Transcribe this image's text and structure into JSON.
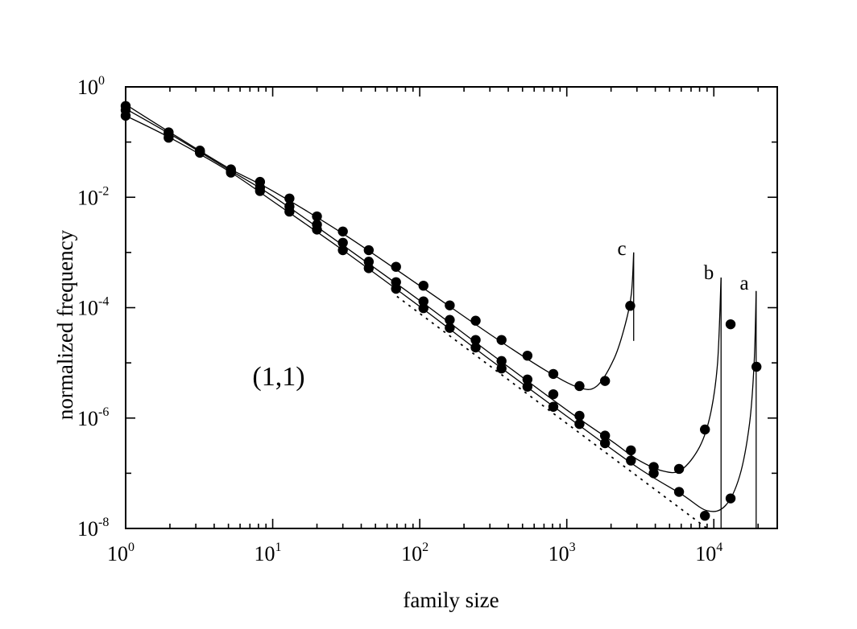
{
  "chart_data": {
    "type": "scatter",
    "xlabel": "family size",
    "ylabel": "normalized frequency",
    "xscale": "log",
    "yscale": "log",
    "xlim": [
      1,
      27000
    ],
    "ylim": [
      1e-08,
      1
    ],
    "x_ticks": [
      {
        "base": "10",
        "exp": "0"
      },
      {
        "base": "10",
        "exp": "1"
      },
      {
        "base": "10",
        "exp": "2"
      },
      {
        "base": "10",
        "exp": "3"
      },
      {
        "base": "10",
        "exp": "4"
      }
    ],
    "y_ticks": [
      {
        "base": "10",
        "exp": "-8"
      },
      {
        "base": "10",
        "exp": "-6"
      },
      {
        "base": "10",
        "exp": "-4"
      },
      {
        "base": "10",
        "exp": "-2"
      },
      {
        "base": "10",
        "exp": "0"
      }
    ],
    "annotation": "(1,1)",
    "series": [
      {
        "name": "a",
        "points": [
          [
            1,
            0.3
          ],
          [
            1.96,
            0.12
          ],
          [
            3.2,
            0.07
          ],
          [
            5.2,
            0.028
          ],
          [
            8.2,
            0.013
          ],
          [
            13,
            0.0055
          ],
          [
            20,
            0.0026
          ],
          [
            30,
            0.0011
          ],
          [
            45,
            0.00052
          ],
          [
            69,
            0.00022
          ],
          [
            106,
            9.8e-05
          ],
          [
            160,
            4.3e-05
          ],
          [
            240,
            1.9e-05
          ],
          [
            360,
            7.9e-06
          ],
          [
            540,
            3.7e-06
          ],
          [
            810,
            1.6e-06
          ],
          [
            1220,
            7.8e-07
          ],
          [
            1820,
            3.5e-07
          ],
          [
            2730,
            1.7e-07
          ],
          [
            3900,
            1e-07
          ],
          [
            5800,
            4.6e-08
          ],
          [
            8700,
            1.7e-08
          ],
          [
            13000,
            3.5e-08
          ],
          [
            19500,
            8.5e-06
          ]
        ],
        "curve": [
          [
            1,
            0.3
          ],
          [
            2,
            0.12
          ],
          [
            5,
            0.03
          ],
          [
            10,
            0.0085
          ],
          [
            30,
            0.0011
          ],
          [
            100,
            0.000105
          ],
          [
            300,
            1.15e-05
          ],
          [
            1000,
            1.08e-06
          ],
          [
            3000,
            1.3e-07
          ],
          [
            6000,
            4.2e-08
          ],
          [
            9000,
            2.1e-08
          ],
          [
            12000,
            2.6e-08
          ],
          [
            15000,
            9e-08
          ],
          [
            17500,
            8e-07
          ],
          [
            18800,
            1e-05
          ],
          [
            19400,
            0.0002
          ]
        ]
      },
      {
        "name": "b",
        "points": [
          [
            1,
            0.38
          ],
          [
            1.96,
            0.14
          ],
          [
            3.2,
            0.066
          ],
          [
            5.2,
            0.03
          ],
          [
            8.2,
            0.015
          ],
          [
            13,
            0.0068
          ],
          [
            20,
            0.0032
          ],
          [
            30,
            0.0015
          ],
          [
            45,
            0.00068
          ],
          [
            69,
            0.00029
          ],
          [
            106,
            0.00013
          ],
          [
            160,
            6e-05
          ],
          [
            240,
            2.6e-05
          ],
          [
            360,
            1.08e-05
          ],
          [
            540,
            5e-06
          ],
          [
            810,
            2.7e-06
          ],
          [
            1220,
            1.1e-06
          ],
          [
            1820,
            4.8e-07
          ],
          [
            2730,
            2.6e-07
          ],
          [
            3900,
            1.3e-07
          ],
          [
            5800,
            1.2e-07
          ],
          [
            8700,
            6.2e-07
          ],
          [
            13000,
            5e-05
          ]
        ],
        "curve": [
          [
            1,
            0.4
          ],
          [
            2,
            0.14
          ],
          [
            5,
            0.032
          ],
          [
            10,
            0.0105
          ],
          [
            30,
            0.00135
          ],
          [
            100,
            0.000135
          ],
          [
            300,
            1.5e-05
          ],
          [
            1000,
            1.4e-06
          ],
          [
            2000,
            3.9e-07
          ],
          [
            3000,
            1.8e-07
          ],
          [
            4500,
            1.1e-07
          ],
          [
            6000,
            1.15e-07
          ],
          [
            8000,
            3e-07
          ],
          [
            9500,
            1.2e-06
          ],
          [
            10600,
            1e-05
          ],
          [
            11200,
            0.00035
          ]
        ]
      },
      {
        "name": "c",
        "points": [
          [
            1,
            0.45
          ],
          [
            1.96,
            0.15
          ],
          [
            3.2,
            0.064
          ],
          [
            5.2,
            0.032
          ],
          [
            8.2,
            0.019
          ],
          [
            13,
            0.0095
          ],
          [
            20,
            0.0045
          ],
          [
            30,
            0.0024
          ],
          [
            45,
            0.0011
          ],
          [
            69,
            0.00055
          ],
          [
            106,
            0.00025
          ],
          [
            160,
            0.00011
          ],
          [
            240,
            5.8e-05
          ],
          [
            360,
            2.6e-05
          ],
          [
            540,
            1.35e-05
          ],
          [
            810,
            6.3e-06
          ],
          [
            1220,
            3.8e-06
          ],
          [
            1820,
            4.7e-06
          ],
          [
            2700,
            0.000108
          ]
        ],
        "curve": [
          [
            1,
            0.48
          ],
          [
            2,
            0.15
          ],
          [
            5,
            0.034
          ],
          [
            10,
            0.013
          ],
          [
            30,
            0.0022
          ],
          [
            100,
            0.00025
          ],
          [
            300,
            3.3e-05
          ],
          [
            700,
            7.6e-06
          ],
          [
            1200,
            3.6e-06
          ],
          [
            1600,
            3.8e-06
          ],
          [
            2100,
            1.2e-05
          ],
          [
            2500,
            5e-05
          ],
          [
            2750,
            0.00018
          ],
          [
            2850,
            0.001
          ]
        ]
      }
    ],
    "reference_line": {
      "style": "dotted",
      "points": [
        [
          70,
          0.00016
        ],
        [
          9000,
          1e-08
        ]
      ]
    }
  }
}
